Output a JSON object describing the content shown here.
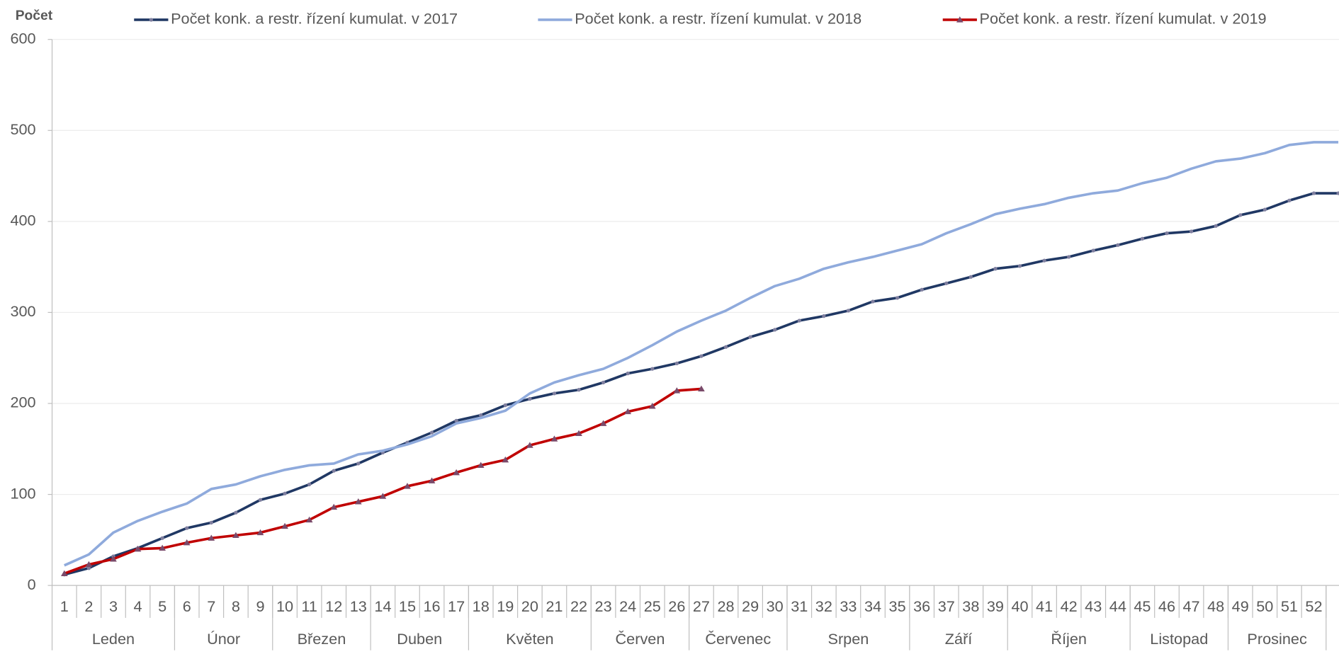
{
  "chart_data": {
    "type": "line",
    "y_axis_title": "Počet",
    "categories": [
      "1",
      "2",
      "3",
      "4",
      "5",
      "6",
      "7",
      "8",
      "9",
      "10",
      "11",
      "12",
      "13",
      "14",
      "15",
      "16",
      "17",
      "18",
      "19",
      "20",
      "21",
      "22",
      "23",
      "24",
      "25",
      "26",
      "27",
      "28",
      "29",
      "30",
      "31",
      "32",
      "33",
      "34",
      "35",
      "36",
      "37",
      "38",
      "39",
      "40",
      "41",
      "42",
      "43",
      "44",
      "45",
      "46",
      "47",
      "48",
      "49",
      "50",
      "51",
      "52",
      null
    ],
    "months": [
      {
        "name": "Leden",
        "weeks": 5
      },
      {
        "name": "Únor",
        "weeks": 4
      },
      {
        "name": "Březen",
        "weeks": 4
      },
      {
        "name": "Duben",
        "weeks": 4
      },
      {
        "name": "Květen",
        "weeks": 5
      },
      {
        "name": "Červen",
        "weeks": 4
      },
      {
        "name": "Červenec",
        "weeks": 4
      },
      {
        "name": "Srpen",
        "weeks": 5
      },
      {
        "name": "Září",
        "weeks": 4
      },
      {
        "name": "Říjen",
        "weeks": 5
      },
      {
        "name": "Listopad",
        "weeks": 4
      },
      {
        "name": "Prosinec",
        "weeks": 4
      }
    ],
    "series": [
      {
        "name": "Počet konk. a restr. řízení kumulat. v 2017",
        "color": "#203864",
        "marker": "dot",
        "values": [
          12,
          19,
          32,
          41,
          52,
          63,
          69,
          80,
          94,
          101,
          111,
          126,
          134,
          146,
          157,
          168,
          181,
          187,
          198,
          205,
          211,
          215,
          223,
          233,
          238,
          244,
          252,
          262,
          273,
          281,
          291,
          296,
          302,
          312,
          316,
          325,
          332,
          339,
          348,
          351,
          357,
          361,
          368,
          374,
          381,
          387,
          389,
          395,
          407,
          413,
          423,
          431,
          431
        ]
      },
      {
        "name": "Počet konk. a restr. řízení kumulat. v 2018",
        "color": "#8faadc",
        "marker": "none",
        "values": [
          22,
          34,
          58,
          71,
          81,
          90,
          106,
          111,
          120,
          127,
          132,
          134,
          144,
          148,
          155,
          164,
          178,
          184,
          192,
          211,
          223,
          231,
          238,
          250,
          264,
          279,
          291,
          302,
          316,
          329,
          337,
          348,
          355,
          361,
          368,
          375,
          387,
          397,
          408,
          414,
          419,
          426,
          431,
          434,
          442,
          448,
          458,
          466,
          469,
          475,
          484,
          487,
          487
        ]
      },
      {
        "name": "Počet konk. a restr. řízení kumulat. v 2019",
        "color": "#c00000",
        "marker": "triangle",
        "values": [
          13,
          23,
          29,
          40,
          41,
          47,
          52,
          55,
          58,
          65,
          72,
          86,
          92,
          98,
          109,
          115,
          124,
          132,
          138,
          154,
          161,
          167,
          178,
          191,
          197,
          214,
          216,
          null,
          null,
          null,
          null,
          null,
          null,
          null,
          null,
          null,
          null,
          null,
          null,
          null,
          null,
          null,
          null,
          null,
          null,
          null,
          null,
          null,
          null,
          null,
          null,
          null,
          null
        ]
      }
    ],
    "ylim": [
      0,
      600
    ],
    "yticks": [
      0,
      100,
      200,
      300,
      400,
      500,
      600
    ],
    "grid": true,
    "legend": "top"
  }
}
